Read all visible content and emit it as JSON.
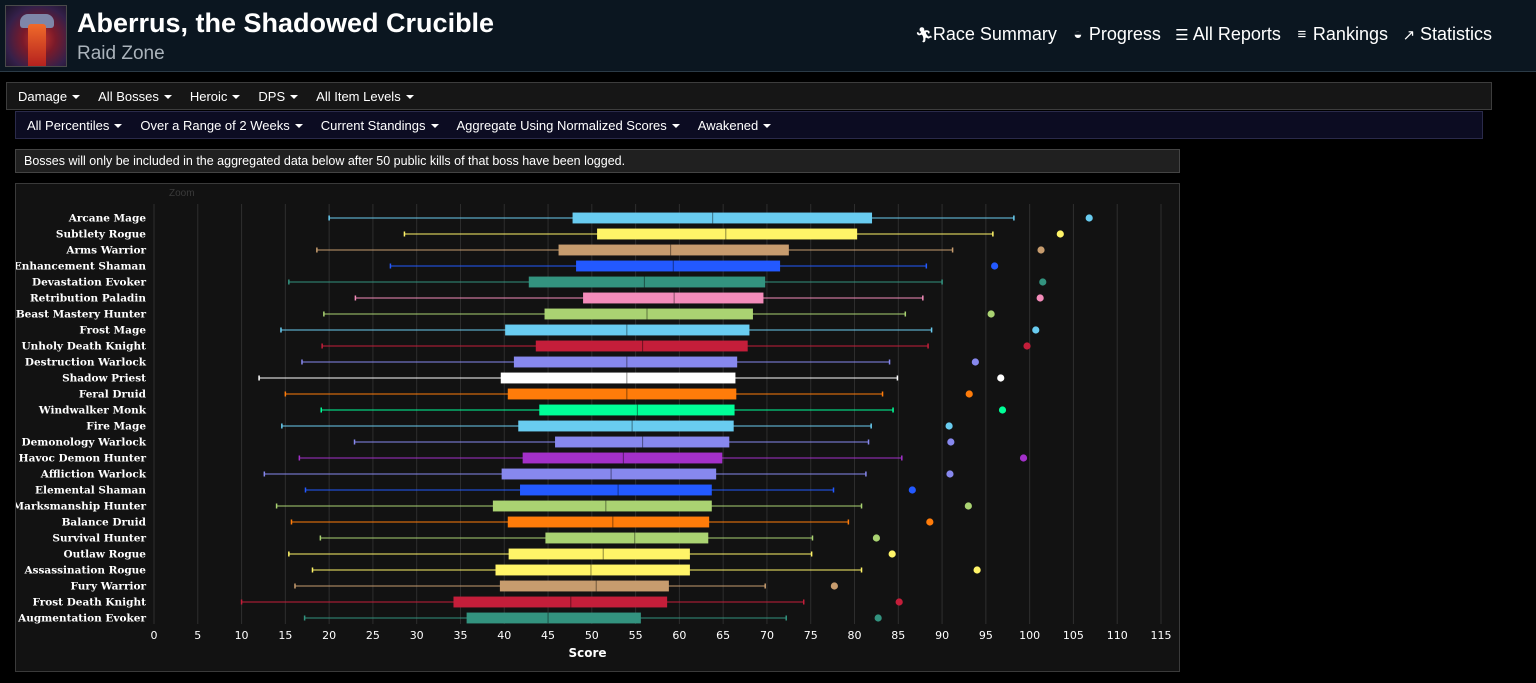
{
  "header": {
    "title": "Aberrus, the Shadowed Crucible",
    "subtitle": "Raid Zone",
    "icon": "raid-zone-icon",
    "nav": [
      {
        "label": "Race Summary",
        "icon": "runner-icon"
      },
      {
        "label": "Progress",
        "icon": "globe-icon"
      },
      {
        "label": "All Reports",
        "icon": "list-icon"
      },
      {
        "label": "Rankings",
        "icon": "rankings-icon"
      },
      {
        "label": "Statistics",
        "icon": "trend-icon"
      }
    ]
  },
  "filters": {
    "row1": [
      "Damage",
      "All Bosses",
      "Heroic",
      "DPS",
      "All Item Levels"
    ],
    "row2": [
      "All Percentiles",
      "Over a Range of 2 Weeks",
      "Current Standings",
      "Aggregate Using Normalized Scores",
      "Awakened"
    ]
  },
  "notice": "Bosses will only be included in the aggregated data below after 50 public kills of that boss have been logged.",
  "chart_zoom_label": "Zoom",
  "chart_data": {
    "type": "boxplot",
    "orientation": "horizontal",
    "xlabel": "Score",
    "xlim": [
      0,
      115
    ],
    "xticks": [
      0,
      5,
      10,
      15,
      20,
      25,
      30,
      35,
      40,
      45,
      50,
      55,
      60,
      65,
      70,
      75,
      80,
      85,
      90,
      95,
      100,
      105,
      110,
      115
    ],
    "grid": true,
    "series": [
      {
        "name": "Arcane Mage",
        "color": "#69ccf0",
        "min": 20.0,
        "q1": 47.8,
        "median": 63.8,
        "q3": 82.0,
        "max": 98.2,
        "outlier": 106.8
      },
      {
        "name": "Subtlety Rogue",
        "color": "#fff468",
        "min": 28.6,
        "q1": 50.6,
        "median": 65.3,
        "q3": 80.3,
        "max": 95.8,
        "outlier": 103.5
      },
      {
        "name": "Arms Warrior",
        "color": "#c79c6e",
        "min": 18.6,
        "q1": 46.2,
        "median": 59.0,
        "q3": 72.5,
        "max": 91.2,
        "outlier": 101.3
      },
      {
        "name": "Enhancement Shaman",
        "color": "#2359ff",
        "min": 27.0,
        "q1": 48.2,
        "median": 59.3,
        "q3": 71.5,
        "max": 88.2,
        "outlier": 96.0
      },
      {
        "name": "Devastation Evoker",
        "color": "#33937f",
        "min": 15.4,
        "q1": 42.8,
        "median": 56.0,
        "q3": 69.8,
        "max": 90.0,
        "outlier": 101.5
      },
      {
        "name": "Retribution Paladin",
        "color": "#f48cba",
        "min": 23.0,
        "q1": 49.0,
        "median": 59.4,
        "q3": 69.6,
        "max": 87.8,
        "outlier": 101.2
      },
      {
        "name": "Beast Mastery Hunter",
        "color": "#aad372",
        "min": 19.4,
        "q1": 44.6,
        "median": 56.3,
        "q3": 68.4,
        "max": 85.8,
        "outlier": 95.6
      },
      {
        "name": "Frost Mage",
        "color": "#69ccf0",
        "min": 14.5,
        "q1": 40.1,
        "median": 54.0,
        "q3": 68.0,
        "max": 88.8,
        "outlier": 100.7
      },
      {
        "name": "Unholy Death Knight",
        "color": "#c41e3a",
        "min": 19.2,
        "q1": 43.6,
        "median": 55.8,
        "q3": 67.8,
        "max": 88.4,
        "outlier": 99.7
      },
      {
        "name": "Destruction Warlock",
        "color": "#8788ee",
        "min": 16.9,
        "q1": 41.1,
        "median": 54.0,
        "q3": 66.6,
        "max": 84.0,
        "outlier": 93.8
      },
      {
        "name": "Shadow Priest",
        "color": "#ffffff",
        "min": 12.0,
        "q1": 39.6,
        "median": 54.0,
        "q3": 66.4,
        "max": 84.9,
        "outlier": 96.7
      },
      {
        "name": "Feral Druid",
        "color": "#ff7c0a",
        "min": 15.0,
        "q1": 40.4,
        "median": 54.0,
        "q3": 66.5,
        "max": 83.2,
        "outlier": 93.1
      },
      {
        "name": "Windwalker Monk",
        "color": "#00ff98",
        "min": 19.1,
        "q1": 44.0,
        "median": 55.2,
        "q3": 66.3,
        "max": 84.4,
        "outlier": 96.9
      },
      {
        "name": "Fire Mage",
        "color": "#69ccf0",
        "min": 14.6,
        "q1": 41.6,
        "median": 54.6,
        "q3": 66.2,
        "max": 81.9,
        "outlier": 90.8
      },
      {
        "name": "Demonology Warlock",
        "color": "#8788ee",
        "min": 22.9,
        "q1": 45.8,
        "median": 55.8,
        "q3": 65.7,
        "max": 81.6,
        "outlier": 91.0
      },
      {
        "name": "Havoc Demon Hunter",
        "color": "#a330c9",
        "min": 16.6,
        "q1": 42.1,
        "median": 53.6,
        "q3": 64.9,
        "max": 85.4,
        "outlier": 99.3
      },
      {
        "name": "Affliction Warlock",
        "color": "#8788ee",
        "min": 12.6,
        "q1": 39.7,
        "median": 52.2,
        "q3": 64.2,
        "max": 81.3,
        "outlier": 90.9
      },
      {
        "name": "Elemental Shaman",
        "color": "#2359ff",
        "min": 17.3,
        "q1": 41.8,
        "median": 53.0,
        "q3": 63.7,
        "max": 77.6,
        "outlier": 86.6
      },
      {
        "name": "Marksmanship Hunter",
        "color": "#aad372",
        "min": 14.0,
        "q1": 38.7,
        "median": 51.6,
        "q3": 63.7,
        "max": 80.8,
        "outlier": 93.0
      },
      {
        "name": "Balance Druid",
        "color": "#ff7c0a",
        "min": 15.7,
        "q1": 40.4,
        "median": 52.4,
        "q3": 63.4,
        "max": 79.3,
        "outlier": 88.6
      },
      {
        "name": "Survival Hunter",
        "color": "#aad372",
        "min": 19.0,
        "q1": 44.7,
        "median": 54.9,
        "q3": 63.3,
        "max": 75.2,
        "outlier": 82.5
      },
      {
        "name": "Outlaw Rogue",
        "color": "#fff468",
        "min": 15.4,
        "q1": 40.5,
        "median": 51.3,
        "q3": 61.2,
        "max": 75.1,
        "outlier": 84.3
      },
      {
        "name": "Assassination Rogue",
        "color": "#fff468",
        "min": 18.1,
        "q1": 39.0,
        "median": 49.9,
        "q3": 61.2,
        "max": 80.8,
        "outlier": 94.0
      },
      {
        "name": "Fury Warrior",
        "color": "#c79c6e",
        "min": 16.1,
        "q1": 39.5,
        "median": 50.5,
        "q3": 58.8,
        "max": 69.8,
        "outlier": 77.7
      },
      {
        "name": "Frost Death Knight",
        "color": "#c41e3a",
        "min": 10.0,
        "q1": 34.2,
        "median": 47.6,
        "q3": 58.6,
        "max": 74.2,
        "outlier": 85.1
      },
      {
        "name": "Augmentation Evoker",
        "color": "#33937f",
        "min": 17.2,
        "q1": 35.7,
        "median": 45.0,
        "q3": 55.6,
        "max": 72.2,
        "outlier": 82.7
      }
    ]
  }
}
